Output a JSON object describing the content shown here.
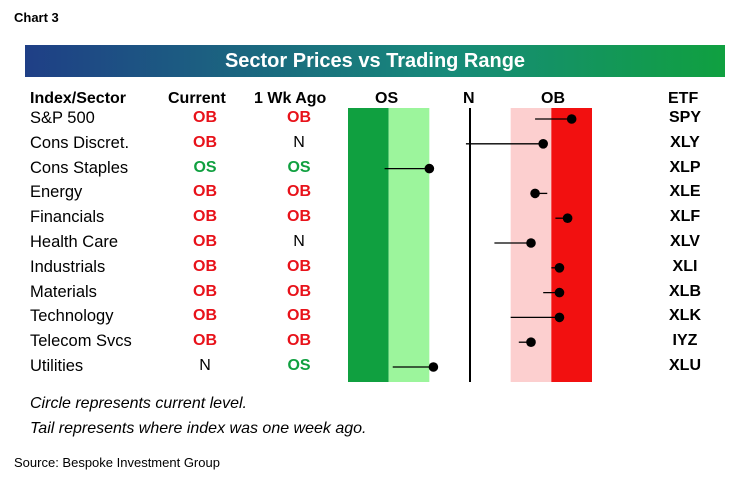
{
  "chart_label": "Chart 3",
  "title": "Sector Prices vs Trading Range",
  "headers": {
    "index": "Index/Sector",
    "current": "Current",
    "week_ago": "1 Wk Ago",
    "os": "OS",
    "n": "N",
    "ob": "OB",
    "etf": "ETF"
  },
  "colors": {
    "ob": "#e8121a",
    "os": "#10a040",
    "os_dark": "#10a040",
    "os_light": "#9cf59c",
    "ob_light": "#fccfcf",
    "ob_dark": "#f21010"
  },
  "chart_data": {
    "type": "range-dot",
    "title": "Sector Prices vs Trading Range",
    "x_scale": "trading range from oversold (OS) through neutral (N) to overbought (OB), 0 = neutral",
    "xlim": [
      -3,
      3
    ],
    "zones": [
      {
        "label": "OS",
        "from": -3.0,
        "to": -2.0,
        "shade": "dark green"
      },
      {
        "label": "OS",
        "from": -2.0,
        "to": -1.0,
        "shade": "light green"
      },
      {
        "label": "OB",
        "from": 1.0,
        "to": 2.0,
        "shade": "light red"
      },
      {
        "label": "OB",
        "from": 2.0,
        "to": 3.0,
        "shade": "dark red"
      }
    ],
    "rows": [
      {
        "name": "S&P 500",
        "current_status": "OB",
        "week_ago_status": "OB",
        "etf": "SPY",
        "current": 2.5,
        "week_ago": 1.6
      },
      {
        "name": "Cons Discret.",
        "current_status": "OB",
        "week_ago_status": "N",
        "etf": "XLY",
        "current": 1.8,
        "week_ago": -0.1
      },
      {
        "name": "Cons Staples",
        "current_status": "OS",
        "week_ago_status": "OS",
        "etf": "XLP",
        "current": -1.0,
        "week_ago": -2.1
      },
      {
        "name": "Energy",
        "current_status": "OB",
        "week_ago_status": "OB",
        "etf": "XLE",
        "current": 1.6,
        "week_ago": 1.9
      },
      {
        "name": "Financials",
        "current_status": "OB",
        "week_ago_status": "OB",
        "etf": "XLF",
        "current": 2.4,
        "week_ago": 2.1
      },
      {
        "name": "Health Care",
        "current_status": "OB",
        "week_ago_status": "N",
        "etf": "XLV",
        "current": 1.5,
        "week_ago": 0.6
      },
      {
        "name": "Industrials",
        "current_status": "OB",
        "week_ago_status": "OB",
        "etf": "XLI",
        "current": 2.2,
        "week_ago": 2.0
      },
      {
        "name": "Materials",
        "current_status": "OB",
        "week_ago_status": "OB",
        "etf": "XLB",
        "current": 2.2,
        "week_ago": 1.8
      },
      {
        "name": "Technology",
        "current_status": "OB",
        "week_ago_status": "OB",
        "etf": "XLK",
        "current": 2.2,
        "week_ago": 1.0
      },
      {
        "name": "Telecom Svcs",
        "current_status": "OB",
        "week_ago_status": "OB",
        "etf": "IYZ",
        "current": 1.5,
        "week_ago": 1.2
      },
      {
        "name": "Utilities",
        "current_status": "N",
        "week_ago_status": "OS",
        "etf": "XLU",
        "current": -0.9,
        "week_ago": -1.9
      }
    ]
  },
  "footnotes": [
    "Circle represents current level.",
    "Tail represents where index was one week ago."
  ],
  "source": "Source: Bespoke Investment Group"
}
